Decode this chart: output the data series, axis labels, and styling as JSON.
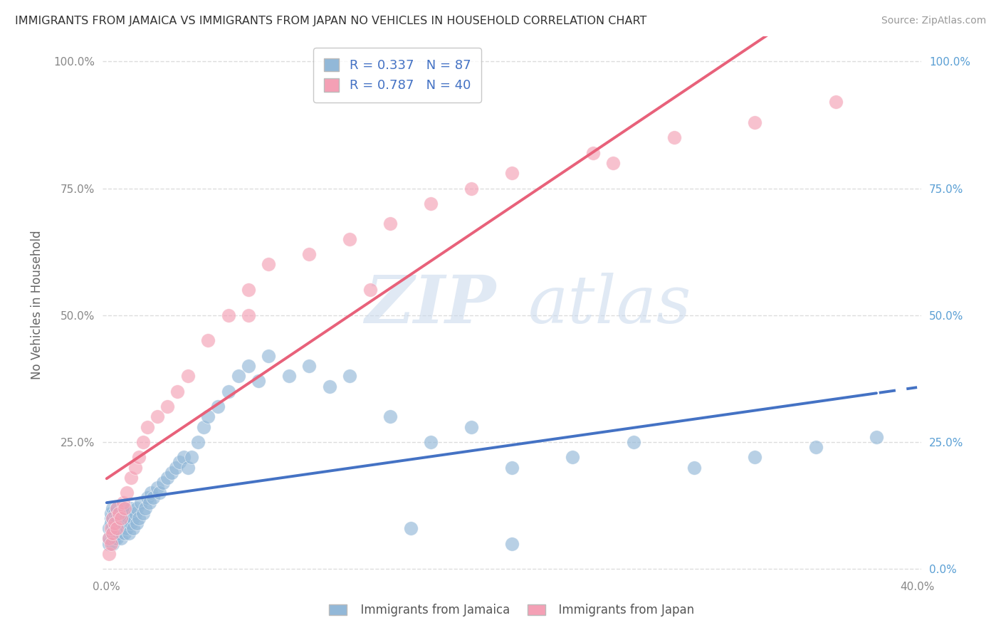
{
  "title": "IMMIGRANTS FROM JAMAICA VS IMMIGRANTS FROM JAPAN NO VEHICLES IN HOUSEHOLD CORRELATION CHART",
  "source": "Source: ZipAtlas.com",
  "ylabel": "No Vehicles in Household",
  "xlabel_jamaica": "Immigrants from Jamaica",
  "xlabel_japan": "Immigrants from Japan",
  "watermark_zip": "ZIP",
  "watermark_atlas": "atlas",
  "jamaica_R": 0.337,
  "jamaica_N": 87,
  "japan_R": 0.787,
  "japan_N": 40,
  "jamaica_color": "#92b8d8",
  "japan_color": "#f4a0b5",
  "jamaica_line_color": "#4472c4",
  "japan_line_color": "#e8617a",
  "xlim": [
    -0.002,
    0.402
  ],
  "ylim": [
    -0.01,
    1.05
  ],
  "jamaica_x": [
    0.001,
    0.001,
    0.001,
    0.002,
    0.002,
    0.002,
    0.002,
    0.003,
    0.003,
    0.003,
    0.003,
    0.003,
    0.004,
    0.004,
    0.004,
    0.004,
    0.005,
    0.005,
    0.005,
    0.005,
    0.005,
    0.006,
    0.006,
    0.006,
    0.007,
    0.007,
    0.007,
    0.008,
    0.008,
    0.008,
    0.009,
    0.009,
    0.01,
    0.01,
    0.01,
    0.011,
    0.011,
    0.012,
    0.012,
    0.013,
    0.013,
    0.014,
    0.015,
    0.015,
    0.016,
    0.017,
    0.018,
    0.019,
    0.02,
    0.021,
    0.022,
    0.023,
    0.025,
    0.026,
    0.028,
    0.03,
    0.032,
    0.034,
    0.036,
    0.038,
    0.04,
    0.042,
    0.045,
    0.048,
    0.05,
    0.055,
    0.06,
    0.065,
    0.07,
    0.075,
    0.08,
    0.09,
    0.1,
    0.11,
    0.12,
    0.14,
    0.16,
    0.18,
    0.2,
    0.23,
    0.26,
    0.29,
    0.32,
    0.35,
    0.38,
    0.2,
    0.15
  ],
  "jamaica_y": [
    0.05,
    0.08,
    0.06,
    0.1,
    0.07,
    0.09,
    0.11,
    0.05,
    0.08,
    0.1,
    0.12,
    0.07,
    0.09,
    0.06,
    0.11,
    0.08,
    0.07,
    0.1,
    0.12,
    0.06,
    0.09,
    0.08,
    0.11,
    0.07,
    0.1,
    0.09,
    0.06,
    0.11,
    0.08,
    0.12,
    0.07,
    0.1,
    0.08,
    0.11,
    0.09,
    0.1,
    0.07,
    0.12,
    0.09,
    0.1,
    0.08,
    0.11,
    0.09,
    0.12,
    0.1,
    0.13,
    0.11,
    0.12,
    0.14,
    0.13,
    0.15,
    0.14,
    0.16,
    0.15,
    0.17,
    0.18,
    0.19,
    0.2,
    0.21,
    0.22,
    0.2,
    0.22,
    0.25,
    0.28,
    0.3,
    0.32,
    0.35,
    0.38,
    0.4,
    0.37,
    0.42,
    0.38,
    0.4,
    0.36,
    0.38,
    0.3,
    0.25,
    0.28,
    0.2,
    0.22,
    0.25,
    0.2,
    0.22,
    0.24,
    0.26,
    0.05,
    0.08
  ],
  "japan_x": [
    0.001,
    0.001,
    0.002,
    0.002,
    0.003,
    0.003,
    0.004,
    0.005,
    0.005,
    0.006,
    0.007,
    0.008,
    0.009,
    0.01,
    0.012,
    0.014,
    0.016,
    0.018,
    0.02,
    0.025,
    0.03,
    0.035,
    0.04,
    0.05,
    0.06,
    0.07,
    0.08,
    0.1,
    0.12,
    0.14,
    0.16,
    0.18,
    0.2,
    0.24,
    0.28,
    0.32,
    0.36,
    0.07,
    0.13,
    0.25
  ],
  "japan_y": [
    0.03,
    0.06,
    0.05,
    0.08,
    0.07,
    0.1,
    0.09,
    0.08,
    0.12,
    0.11,
    0.1,
    0.13,
    0.12,
    0.15,
    0.18,
    0.2,
    0.22,
    0.25,
    0.28,
    0.3,
    0.32,
    0.35,
    0.38,
    0.45,
    0.5,
    0.55,
    0.6,
    0.62,
    0.65,
    0.68,
    0.72,
    0.75,
    0.78,
    0.82,
    0.85,
    0.88,
    0.92,
    0.5,
    0.55,
    0.8
  ],
  "yticks": [
    0.0,
    0.25,
    0.5,
    0.75,
    1.0
  ],
  "ytick_labels_left": [
    "",
    "25.0%",
    "50.0%",
    "75.0%",
    "100.0%"
  ],
  "ytick_labels_right": [
    "0.0%",
    "25.0%",
    "50.0%",
    "75.0%",
    "100.0%"
  ],
  "xticks": [
    0.0,
    0.1,
    0.2,
    0.3,
    0.4
  ],
  "xtick_labels": [
    "0.0%",
    "",
    "",
    "",
    "40.0%"
  ],
  "grid_color": "#dddddd",
  "bg_color": "#ffffff"
}
